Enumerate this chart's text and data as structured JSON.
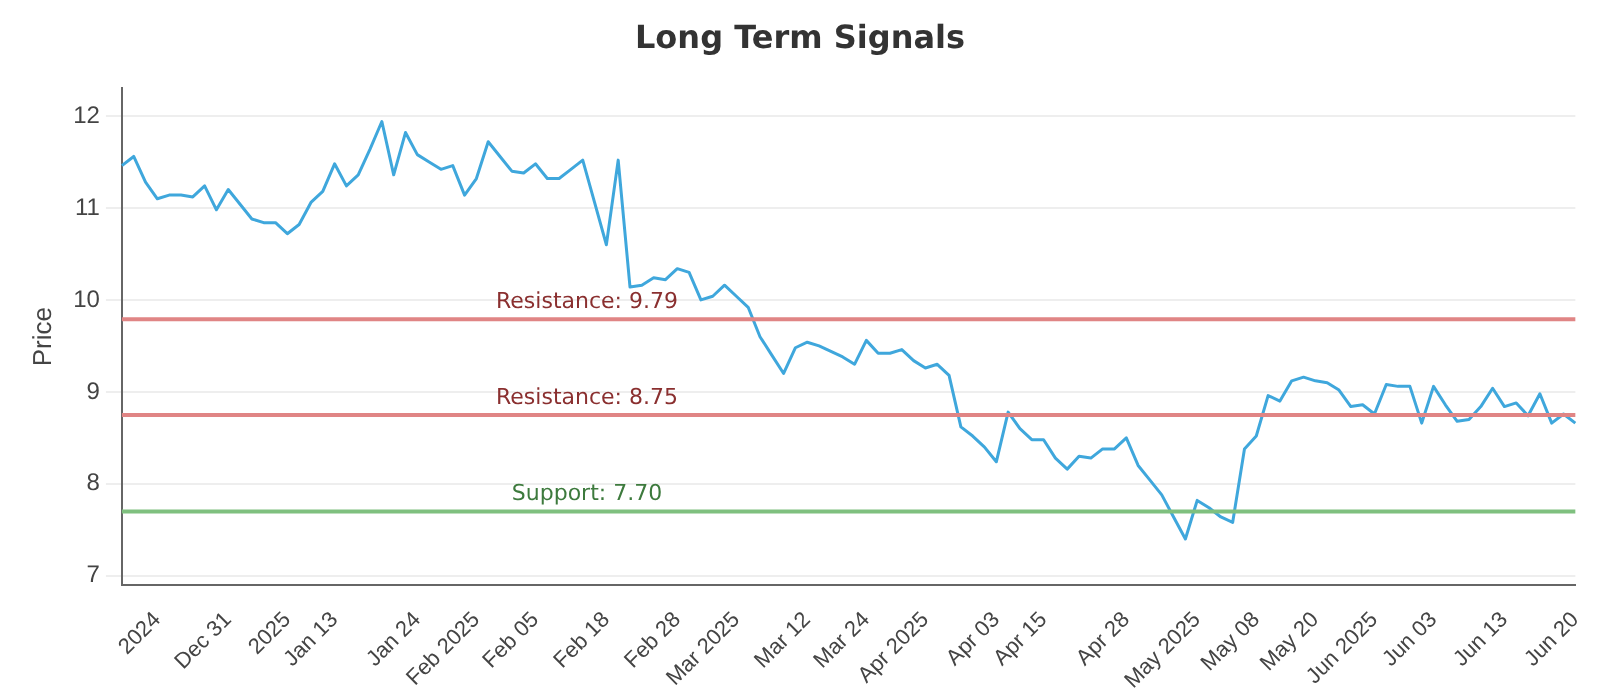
{
  "chart_data": {
    "type": "line",
    "title": "Long Term Signals",
    "ylabel": "Price",
    "categories": [
      null,
      null,
      null,
      "2024",
      null,
      null,
      null,
      null,
      null,
      "Dec 31",
      null,
      null,
      null,
      null,
      "2025",
      null,
      null,
      null,
      "Jan 13",
      null,
      null,
      null,
      null,
      null,
      null,
      "Jan 24",
      null,
      null,
      null,
      null,
      "Feb 2025",
      null,
      null,
      null,
      null,
      "Feb 05",
      null,
      null,
      null,
      null,
      null,
      "Feb 18",
      null,
      null,
      null,
      null,
      null,
      "Feb 28",
      null,
      null,
      null,
      null,
      "Mar 2025",
      null,
      null,
      null,
      null,
      null,
      "Mar 12",
      null,
      null,
      null,
      null,
      "Mar 24",
      null,
      null,
      null,
      null,
      "Apr 2025",
      null,
      null,
      null,
      null,
      null,
      "Apr 03",
      null,
      null,
      null,
      "Apr 15",
      null,
      null,
      null,
      null,
      null,
      null,
      "Apr 28",
      null,
      null,
      null,
      null,
      null,
      "May 2025",
      null,
      null,
      null,
      null,
      "May 08",
      null,
      null,
      null,
      null,
      "May 20",
      null,
      null,
      null,
      null,
      "Jun 2025",
      null,
      null,
      null,
      null,
      "Jun 03",
      null,
      null,
      null,
      null,
      null,
      "Jun 13",
      null,
      null,
      null,
      null,
      null,
      "Jun 20"
    ],
    "series": [
      {
        "color": "#3fa7dc",
        "values": [
          11.46,
          11.56,
          11.28,
          11.1,
          11.14,
          11.14,
          11.12,
          11.24,
          10.98,
          11.2,
          11.04,
          10.88,
          10.84,
          10.84,
          10.72,
          10.82,
          11.06,
          11.18,
          11.48,
          11.24,
          11.36,
          11.64,
          11.94,
          11.36,
          11.82,
          11.58,
          11.5,
          11.42,
          11.46,
          11.14,
          11.32,
          11.72,
          11.56,
          11.4,
          11.38,
          11.48,
          11.32,
          11.32,
          11.42,
          11.52,
          11.06,
          10.6,
          11.52,
          10.14,
          10.16,
          10.24,
          10.22,
          10.34,
          10.3,
          10.0,
          10.04,
          10.16,
          10.04,
          9.92,
          9.6,
          9.4,
          9.2,
          9.48,
          9.54,
          9.5,
          9.44,
          9.38,
          9.3,
          9.56,
          9.42,
          9.42,
          9.46,
          9.34,
          9.26,
          9.3,
          9.18,
          8.62,
          8.52,
          8.4,
          8.24,
          8.78,
          8.6,
          8.48,
          8.48,
          8.28,
          8.16,
          8.3,
          8.28,
          8.38,
          8.38,
          8.5,
          8.2,
          8.04,
          7.88,
          7.64,
          7.4,
          7.82,
          7.74,
          7.64,
          7.58,
          8.38,
          8.52,
          8.96,
          8.9,
          9.12,
          9.16,
          9.12,
          9.1,
          9.02,
          8.84,
          8.86,
          8.76,
          9.08,
          9.06,
          9.06,
          8.66,
          9.06,
          8.86,
          8.68,
          8.7,
          8.84,
          9.04,
          8.84,
          8.88,
          8.74,
          8.98,
          8.66,
          8.76,
          8.66
        ]
      }
    ],
    "ylim": [
      6.9,
      12.3
    ],
    "yticks": [
      7,
      8,
      9,
      10,
      11,
      12
    ],
    "grid": "y",
    "legend": false,
    "marker": "none",
    "line_style": "solid",
    "ref_lines": [
      {
        "axis": "y",
        "value": 9.79,
        "label": "Resistance: 9.79",
        "color": "#e08585"
      },
      {
        "axis": "y",
        "value": 8.75,
        "label": "Resistance: 8.75",
        "color": "#e08585"
      },
      {
        "axis": "y",
        "value": 7.7,
        "label": "Support: 7.70",
        "color": "#7fc07f"
      }
    ]
  }
}
